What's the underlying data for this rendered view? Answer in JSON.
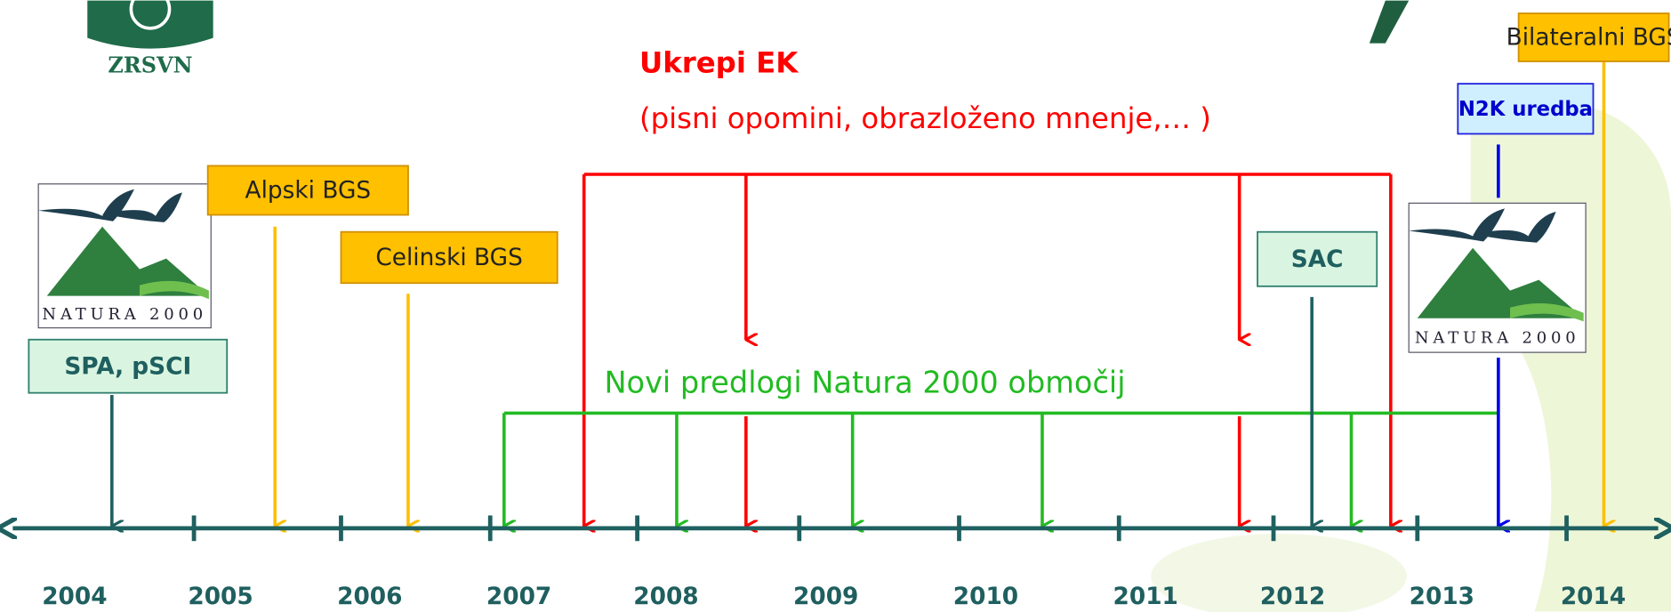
{
  "logo": {
    "label": "ZRSVN"
  },
  "natura_logos": [
    {
      "label": "NATURA 2000"
    },
    {
      "label": "NATURA 2000"
    }
  ],
  "measures": {
    "title": "Ukrepi EK",
    "subtitle": "(pisni opomini, obrazloženo mnenje,… )"
  },
  "proposals": {
    "label": "Novi predlogi Natura 2000 območij"
  },
  "boxes": [
    {
      "label": "SPA, pSCI"
    },
    {
      "label": "Alpski BGS"
    },
    {
      "label": "Celinski BGS"
    },
    {
      "label": "SAC"
    },
    {
      "label": "N2K uredba"
    },
    {
      "label": "Bilateralni BGS"
    }
  ],
  "years": [
    "2004",
    "2005",
    "2006",
    "2007",
    "2008",
    "2009",
    "2010",
    "2011",
    "2012",
    "2013",
    "2014"
  ]
}
